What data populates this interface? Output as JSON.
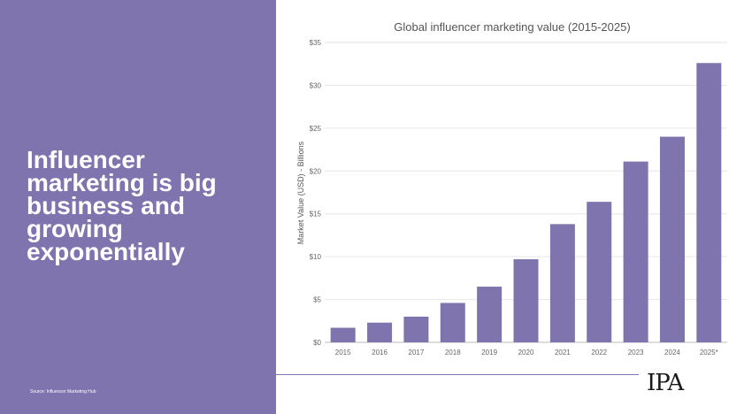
{
  "slide": {
    "headline": "Influencer marketing is big business and growing exponentially",
    "source": "Source: Influencer Marketing Hub",
    "logo_text": "IPA",
    "accent_color": "#7f74ad"
  },
  "chart_data": {
    "type": "bar",
    "title": "Global influencer marketing value (2015-2025)",
    "xlabel": "",
    "ylabel": "Market Value (USD) - Billions",
    "categories": [
      "2015",
      "2016",
      "2017",
      "2018",
      "2019",
      "2020",
      "2021",
      "2022",
      "2023",
      "2024",
      "2025*"
    ],
    "values": [
      1.7,
      2.3,
      3.0,
      4.6,
      6.5,
      9.7,
      13.8,
      16.4,
      21.1,
      24.0,
      32.6
    ],
    "ylim": [
      0,
      35
    ],
    "yticks": [
      0,
      5,
      10,
      15,
      20,
      25,
      30,
      35
    ],
    "ytick_labels": [
      "$0",
      "$5",
      "$10",
      "$15",
      "$20",
      "$25",
      "$30",
      "$35"
    ],
    "grid": true,
    "legend": "none",
    "bar_color": "#7f74ad"
  }
}
